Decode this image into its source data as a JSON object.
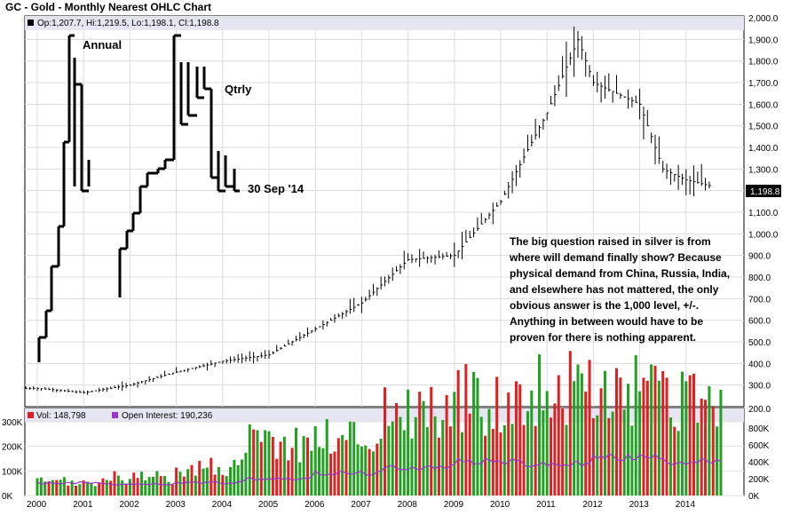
{
  "chart_title": "GC - Gold - Monthly Nearest OHLC Chart",
  "ohlc_legend": "Op:1,207.7, Hi:1,219.5, Lo:1,198.1, Cl:1,198.8",
  "last_price_label": "1,198.8",
  "annotations": {
    "annual": "Annual",
    "qtrly": "Qtrly",
    "date": "30 Sep '14",
    "commentary": [
      "The big question raised in silver is from",
      "where will demand finally show?  Because",
      "physical demand from China, Russia, India,",
      "and elsewhere has not mattered, the only",
      "obvious answer is the 1,000 level, +/-.",
      "Anything in between would have to be",
      "proven for there is nothing apparent."
    ]
  },
  "volume_legend": {
    "vol": "Vol: 148,798",
    "oi": "Open Interest: 190,236"
  },
  "colors": {
    "panel_bg": "#ffffff",
    "grid": "#d4d4d4",
    "up_volume": "#22a022",
    "down_volume": "#e02020",
    "open_interest": "#9933cc",
    "price": "#000000"
  },
  "chart_data": [
    {
      "type": "ohlc",
      "title": "GC - Gold - Monthly Nearest OHLC Chart",
      "x_ticks": [
        "2000",
        "2001",
        "2002",
        "2003",
        "2004",
        "2005",
        "2006",
        "2007",
        "2008",
        "2009",
        "2010",
        "2011",
        "2012",
        "2013",
        "2014"
      ],
      "y_ticks": [
        "300.0",
        "400.0",
        "500.0",
        "600.0",
        "700.0",
        "800.0",
        "900.0",
        "1,000.0",
        "1,100.0",
        "1,200.0",
        "1,300.0",
        "1,400.0",
        "1,500.0",
        "1,600.0",
        "1,700.0",
        "1,800.0",
        "1,900.0",
        "2,000.0"
      ],
      "y_range": [
        200,
        2000
      ],
      "grid": true,
      "series": [
        {
          "name": "Monthly",
          "x": [
            "2000",
            "2001",
            "2002",
            "2003",
            "2004",
            "2005",
            "2006",
            "2007",
            "2008",
            "2009",
            "2010",
            "2011",
            "2011.67",
            "2012",
            "2013",
            "2013.5",
            "2014",
            "2014.75"
          ],
          "close": [
            285,
            265,
            300,
            360,
            410,
            440,
            560,
            680,
            880,
            900,
            1150,
            1560,
            1900,
            1700,
            1600,
            1300,
            1250,
            1210
          ]
        },
        {
          "name": "Annual",
          "x": [
            2000,
            2001,
            2002,
            2003,
            2004,
            2005,
            2006,
            2007,
            2008,
            2009,
            2010,
            2011,
            2012,
            2013,
            2014
          ],
          "open": [
            290,
            272,
            278,
            347,
            416,
            438,
            517,
            637,
            834,
            878,
            1096,
            1420,
            1566,
            1675,
            1204
          ],
          "high": [
            325,
            295,
            350,
            418,
            455,
            540,
            730,
            845,
            1033,
            1227,
            1430,
            1921,
            1796,
            1696,
            1392
          ],
          "low": [
            263,
            256,
            277,
            320,
            373,
            410,
            512,
            602,
            681,
            800,
            1044,
            1308,
            1522,
            1180,
            1180
          ],
          "close": [
            272,
            278,
            347,
            416,
            438,
            517,
            637,
            834,
            878,
            1096,
            1420,
            1566,
            1675,
            1204,
            1198
          ]
        }
      ]
    },
    {
      "type": "bar",
      "title": "",
      "x_ticks": [
        "2000",
        "2001",
        "2002",
        "2003",
        "2004",
        "2005",
        "2006",
        "2007",
        "2008",
        "2009",
        "2010",
        "2011",
        "2012",
        "2013",
        "2014"
      ],
      "y_ticks_left": [
        "0K",
        "100K",
        "200K",
        "300K"
      ],
      "y_ticks_right": [
        "0K",
        "200K",
        "400K",
        "600K",
        "800K",
        "200.0"
      ],
      "series": [
        {
          "name": "Vol: 148,798",
          "values": [
            60000,
            80000,
            130000,
            240000,
            270000,
            390000,
            430000,
            480000,
            460000,
            410000
          ]
        },
        {
          "name": "Open Interest: 190,236",
          "values": [
            170000,
            150000,
            175000,
            230000,
            300000,
            380000,
            460000,
            420000,
            520000,
            460000
          ]
        }
      ]
    }
  ]
}
